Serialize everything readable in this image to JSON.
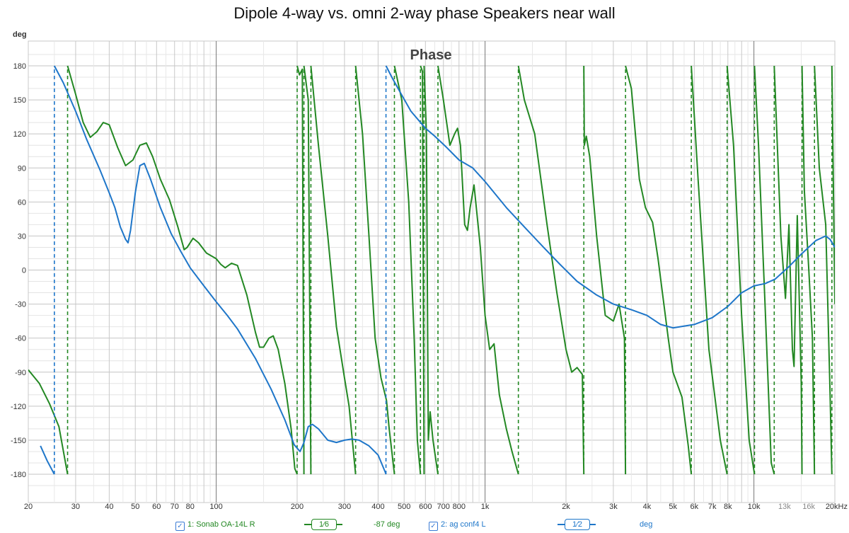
{
  "chart_data": {
    "type": "line",
    "title": "Dipole 4-way vs. omni 2-way phase Speakers near wall",
    "subtitle": "Phase",
    "ylabel": "deg",
    "xlabel": "",
    "x_scale": "log",
    "xlim": [
      20,
      20000
    ],
    "ylim": [
      -195,
      195
    ],
    "grid": true,
    "y_ticks": [
      "180",
      "150",
      "120",
      "90",
      "60",
      "30",
      "0",
      "-30",
      "-60",
      "-90",
      "-120",
      "-150",
      "-180"
    ],
    "x_ticks": [
      "20",
      "30",
      "40",
      "50",
      "60",
      "70",
      "80",
      "100",
      "200",
      "300",
      "400",
      "500",
      "600",
      "700",
      "800",
      "1k",
      "2k",
      "3k",
      "4k",
      "5k",
      "6k",
      "7k",
      "8k",
      "10k",
      "13k",
      "16k",
      "20kHz"
    ],
    "x_minor_ticks": [
      "13k",
      "16k"
    ],
    "series": [
      {
        "name": "1: Sonab OA-14L R",
        "color": "#238823",
        "smoothing": "1/6",
        "cursor_value": "-87 deg",
        "points": [
          [
            20,
            -88
          ],
          [
            22,
            -100
          ],
          [
            24,
            -118
          ],
          [
            26,
            -138
          ],
          [
            28,
            -180
          ],
          [
            28,
            180
          ],
          [
            30,
            155
          ],
          [
            32,
            130
          ],
          [
            34,
            117
          ],
          [
            36,
            122
          ],
          [
            38,
            130
          ],
          [
            40,
            128
          ],
          [
            43,
            108
          ],
          [
            46,
            92
          ],
          [
            49,
            97
          ],
          [
            52,
            110
          ],
          [
            55,
            112
          ],
          [
            58,
            100
          ],
          [
            62,
            80
          ],
          [
            67,
            62
          ],
          [
            72,
            38
          ],
          [
            76,
            18
          ],
          [
            78,
            20
          ],
          [
            82,
            28
          ],
          [
            86,
            24
          ],
          [
            92,
            15
          ],
          [
            100,
            10
          ],
          [
            104,
            5
          ],
          [
            108,
            2
          ],
          [
            114,
            6
          ],
          [
            120,
            4
          ],
          [
            130,
            -22
          ],
          [
            140,
            -55
          ],
          [
            145,
            -68
          ],
          [
            150,
            -68
          ],
          [
            157,
            -60
          ],
          [
            163,
            -58
          ],
          [
            170,
            -70
          ],
          [
            180,
            -100
          ],
          [
            190,
            -140
          ],
          [
            196,
            -175
          ],
          [
            200,
            -180
          ],
          [
            200,
            180
          ],
          [
            204,
            172
          ],
          [
            209,
            177
          ],
          [
            212,
            -180
          ],
          [
            212,
            180
          ],
          [
            220,
            150
          ],
          [
            225,
            -180
          ],
          [
            225,
            180
          ],
          [
            240,
            110
          ],
          [
            260,
            30
          ],
          [
            280,
            -50
          ],
          [
            300,
            -95
          ],
          [
            312,
            -120
          ],
          [
            330,
            -180
          ],
          [
            330,
            180
          ],
          [
            350,
            120
          ],
          [
            370,
            30
          ],
          [
            390,
            -60
          ],
          [
            410,
            -95
          ],
          [
            420,
            -105
          ],
          [
            430,
            -115
          ],
          [
            440,
            -140
          ],
          [
            460,
            -180
          ],
          [
            460,
            180
          ],
          [
            490,
            150
          ],
          [
            520,
            60
          ],
          [
            545,
            -60
          ],
          [
            560,
            -150
          ],
          [
            575,
            -180
          ],
          [
            575,
            180
          ],
          [
            585,
            175
          ],
          [
            593,
            -180
          ],
          [
            593,
            180
          ],
          [
            605,
            120
          ],
          [
            615,
            -150
          ],
          [
            625,
            -125
          ],
          [
            640,
            -150
          ],
          [
            668,
            -180
          ],
          [
            668,
            180
          ],
          [
            700,
            150
          ],
          [
            740,
            110
          ],
          [
            770,
            120
          ],
          [
            790,
            125
          ],
          [
            810,
            110
          ],
          [
            840,
            40
          ],
          [
            860,
            35
          ],
          [
            880,
            55
          ],
          [
            910,
            75
          ],
          [
            960,
            20
          ],
          [
            1000,
            -40
          ],
          [
            1040,
            -70
          ],
          [
            1080,
            -65
          ],
          [
            1130,
            -110
          ],
          [
            1200,
            -140
          ],
          [
            1260,
            -160
          ],
          [
            1330,
            -180
          ],
          [
            1330,
            180
          ],
          [
            1400,
            150
          ],
          [
            1530,
            120
          ],
          [
            1700,
            40
          ],
          [
            1850,
            -20
          ],
          [
            2000,
            -70
          ],
          [
            2100,
            -90
          ],
          [
            2200,
            -86
          ],
          [
            2300,
            -92
          ],
          [
            2330,
            -180
          ],
          [
            2330,
            180
          ],
          [
            2340,
            110
          ],
          [
            2380,
            118
          ],
          [
            2450,
            100
          ],
          [
            2600,
            30
          ],
          [
            2800,
            -40
          ],
          [
            3000,
            -45
          ],
          [
            3150,
            -30
          ],
          [
            3300,
            -60
          ],
          [
            3330,
            -180
          ],
          [
            3330,
            180
          ],
          [
            3500,
            160
          ],
          [
            3750,
            80
          ],
          [
            3950,
            55
          ],
          [
            4200,
            42
          ],
          [
            4400,
            10
          ],
          [
            4800,
            -60
          ],
          [
            5000,
            -90
          ],
          [
            5400,
            -112
          ],
          [
            5700,
            -155
          ],
          [
            5850,
            -180
          ],
          [
            5850,
            180
          ],
          [
            6200,
            80
          ],
          [
            6800,
            -70
          ],
          [
            7500,
            -150
          ],
          [
            7950,
            -180
          ],
          [
            7950,
            180
          ],
          [
            8400,
            110
          ],
          [
            9000,
            -40
          ],
          [
            9600,
            -150
          ],
          [
            10050,
            -180
          ],
          [
            10050,
            180
          ],
          [
            10400,
            110
          ],
          [
            11000,
            -30
          ],
          [
            11600,
            -170
          ],
          [
            11900,
            -180
          ],
          [
            11900,
            180
          ],
          [
            12600,
            30
          ],
          [
            13100,
            -25
          ],
          [
            13500,
            40
          ],
          [
            13900,
            -70
          ],
          [
            14100,
            -85
          ],
          [
            14500,
            48
          ],
          [
            15000,
            -100
          ],
          [
            15100,
            -180
          ],
          [
            15100,
            180
          ],
          [
            15400,
            70
          ],
          [
            16000,
            0
          ],
          [
            16500,
            -60
          ],
          [
            16800,
            -180
          ],
          [
            16800,
            180
          ],
          [
            17500,
            90
          ],
          [
            18500,
            40
          ],
          [
            19200,
            -110
          ],
          [
            19500,
            -180
          ],
          [
            19500,
            180
          ],
          [
            20000,
            -30
          ]
        ]
      },
      {
        "name": "2: ag conf4 L",
        "color": "#1e76c9",
        "smoothing": "1/2",
        "cursor_value": "deg",
        "points": [
          [
            22.2,
            -155
          ],
          [
            23.5,
            -168
          ],
          [
            25,
            -180
          ],
          [
            25,
            180
          ],
          [
            27,
            165
          ],
          [
            30,
            140
          ],
          [
            33,
            115
          ],
          [
            37,
            88
          ],
          [
            40,
            68
          ],
          [
            42,
            55
          ],
          [
            44,
            38
          ],
          [
            46,
            27
          ],
          [
            47,
            24
          ],
          [
            48,
            35
          ],
          [
            50,
            68
          ],
          [
            52,
            92
          ],
          [
            54,
            94
          ],
          [
            57,
            80
          ],
          [
            62,
            55
          ],
          [
            68,
            32
          ],
          [
            74,
            16
          ],
          [
            80,
            2
          ],
          [
            90,
            -14
          ],
          [
            100,
            -28
          ],
          [
            110,
            -40
          ],
          [
            120,
            -52
          ],
          [
            140,
            -78
          ],
          [
            160,
            -105
          ],
          [
            180,
            -132
          ],
          [
            195,
            -154
          ],
          [
            205,
            -160
          ],
          [
            212,
            -152
          ],
          [
            220,
            -138
          ],
          [
            228,
            -136
          ],
          [
            240,
            -140
          ],
          [
            260,
            -150
          ],
          [
            280,
            -152
          ],
          [
            300,
            -150
          ],
          [
            320,
            -149
          ],
          [
            340,
            -150
          ],
          [
            370,
            -155
          ],
          [
            400,
            -163
          ],
          [
            425,
            -178
          ],
          [
            428,
            -180
          ],
          [
            428,
            180
          ],
          [
            450,
            170
          ],
          [
            480,
            158
          ],
          [
            530,
            140
          ],
          [
            600,
            125
          ],
          [
            650,
            118
          ],
          [
            720,
            108
          ],
          [
            800,
            97
          ],
          [
            900,
            90
          ],
          [
            1000,
            78
          ],
          [
            1200,
            55
          ],
          [
            1400,
            38
          ],
          [
            1650,
            20
          ],
          [
            1900,
            5
          ],
          [
            2200,
            -10
          ],
          [
            2600,
            -22
          ],
          [
            3000,
            -30
          ],
          [
            3500,
            -35
          ],
          [
            4000,
            -40
          ],
          [
            4500,
            -48
          ],
          [
            5000,
            -51
          ],
          [
            6000,
            -48
          ],
          [
            7000,
            -42
          ],
          [
            8000,
            -32
          ],
          [
            9000,
            -20
          ],
          [
            10000,
            -14
          ],
          [
            11000,
            -12
          ],
          [
            12000,
            -8
          ],
          [
            13500,
            3
          ],
          [
            15000,
            14
          ],
          [
            17000,
            26
          ],
          [
            18500,
            30
          ],
          [
            19200,
            27
          ],
          [
            20000,
            20
          ]
        ]
      }
    ]
  },
  "legend": {
    "series1_label": "1: Sonab OA-14L R",
    "series1_smoothing": "1⁄6",
    "series1_value": "-87 deg",
    "series2_label": "2: ag conf4 L",
    "series2_smoothing": "1⁄2",
    "series2_value": "deg"
  }
}
